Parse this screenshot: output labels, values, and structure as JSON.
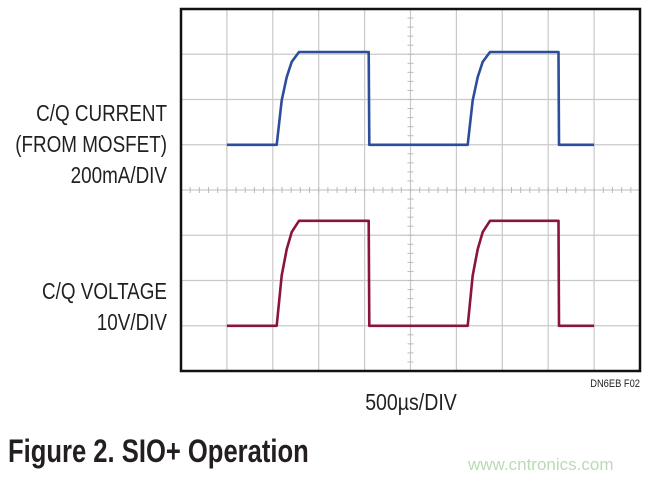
{
  "chart_data": {
    "type": "line",
    "title": "Figure 2. SIO+ Operation",
    "xlabel": "500µs/DIV",
    "figure_id": "DN6EB F02",
    "x_units": "µs",
    "xlim": [
      0,
      5000
    ],
    "grid": true,
    "series": [
      {
        "name": "C/Q CURRENT (FROM MOSFET)",
        "label_lines": [
          "C/Q CURRENT",
          "(FROM MOSFET)",
          "200mA/DIV"
        ],
        "scale": "200mA/DIV",
        "color": "#2b4d9a",
        "units": "mA",
        "points": [
          [
            500,
            0
          ],
          [
            1042,
            0
          ],
          [
            1097,
            196
          ],
          [
            1151,
            299
          ],
          [
            1206,
            366
          ],
          [
            1285,
            410
          ],
          [
            2045,
            410
          ],
          [
            2051,
            0
          ],
          [
            3123,
            0
          ],
          [
            3178,
            196
          ],
          [
            3232,
            299
          ],
          [
            3287,
            366
          ],
          [
            3366,
            410
          ],
          [
            4112,
            410
          ],
          [
            4118,
            0
          ],
          [
            4500,
            0
          ]
        ]
      },
      {
        "name": "C/Q VOLTAGE",
        "label_lines": [
          "C/Q VOLTAGE",
          "10V/DIV"
        ],
        "scale": "10V/DIV",
        "color": "#8b1538",
        "units": "V",
        "points": [
          [
            500,
            0
          ],
          [
            1042,
            0
          ],
          [
            1097,
            11.1
          ],
          [
            1151,
            16.9
          ],
          [
            1206,
            20.7
          ],
          [
            1285,
            23.2
          ],
          [
            2045,
            23.2
          ],
          [
            2051,
            0
          ],
          [
            3123,
            0
          ],
          [
            3178,
            11.1
          ],
          [
            3232,
            16.9
          ],
          [
            3287,
            20.7
          ],
          [
            3366,
            23.2
          ],
          [
            4112,
            23.2
          ],
          [
            4118,
            0
          ],
          [
            4500,
            0
          ]
        ]
      }
    ]
  },
  "watermark": "www.cntronics.com"
}
